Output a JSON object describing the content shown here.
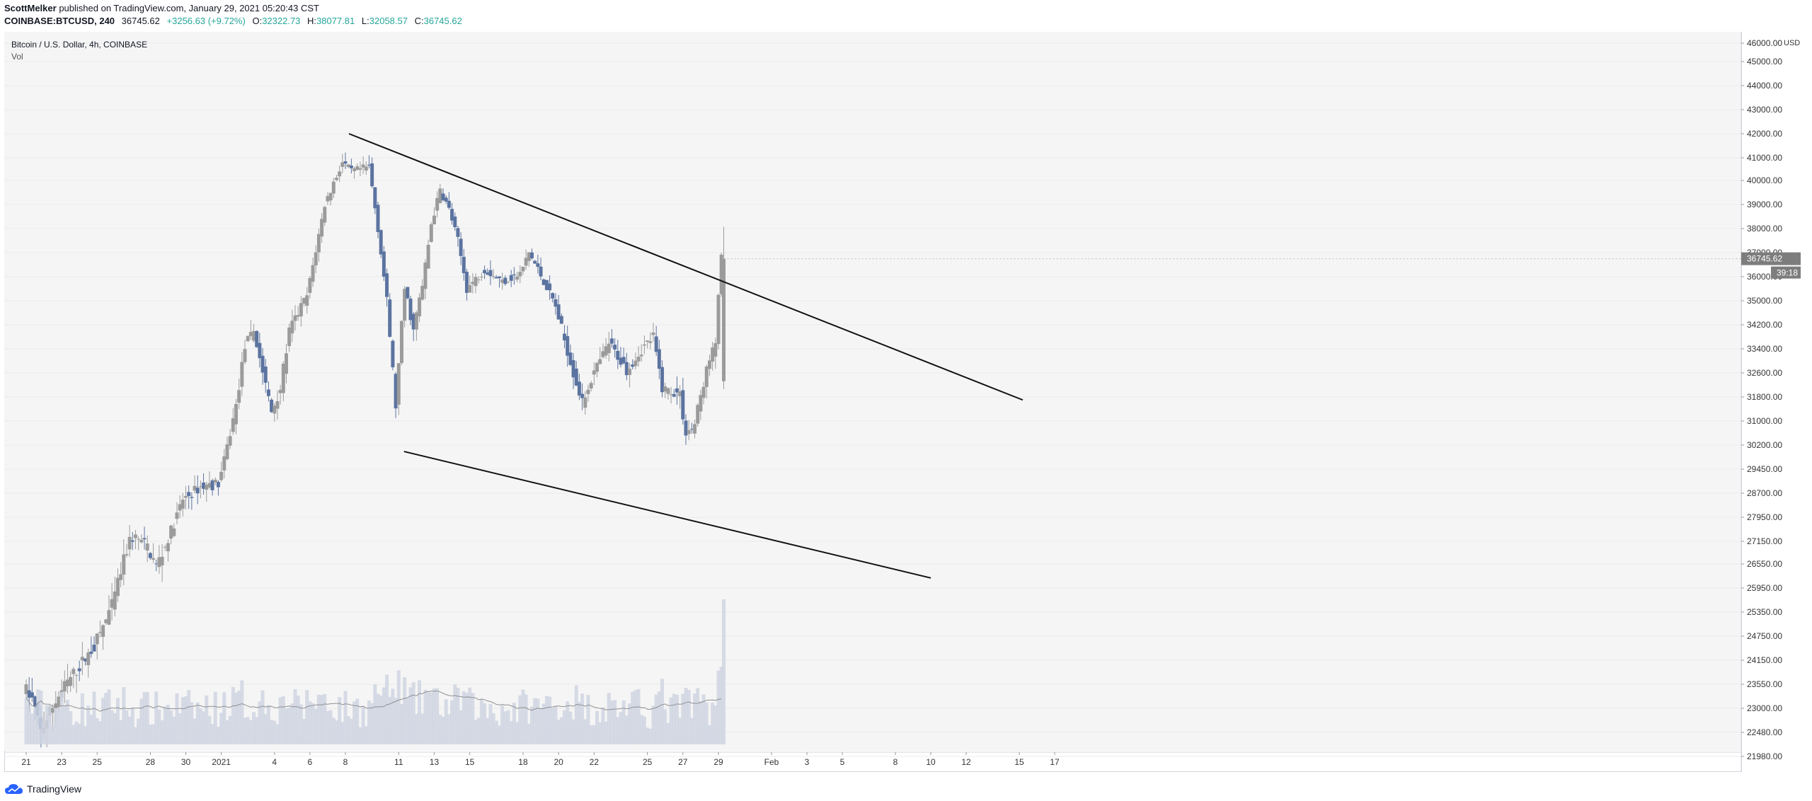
{
  "header": {
    "author": "ScottMelker",
    "published": "published on TradingView.com, January 29, 2021 05:20:43 CST",
    "symbol": "COINBASE:BTCUSD, 240",
    "last": "36745.62",
    "change": "+3256.63 (+9.72%)",
    "open_label": "O:",
    "open": "32322.73",
    "high_label": "H:",
    "high": "38077.81",
    "low_label": "L:",
    "low": "32058.57",
    "close_label": "C:",
    "close": "36745.62"
  },
  "legend": {
    "title": "Bitcoin / U.S. Dollar, 4h, COINBASE",
    "vol": "Vol"
  },
  "footer": {
    "brand": "TradingView"
  },
  "chart_data": {
    "type": "candlestick",
    "title": "Bitcoin / U.S. Dollar, 4h, COINBASE",
    "currency": "USD",
    "y_ticks": [
      46000,
      45000,
      44000,
      43000,
      42000,
      41000,
      40000,
      39000,
      38000,
      37000,
      36000,
      35000,
      34200,
      33400,
      32600,
      31800,
      31000,
      30200,
      29450,
      28700,
      27950,
      27150,
      26550,
      25950,
      25350,
      24750,
      24150,
      23550,
      23000,
      22480,
      21980
    ],
    "x_ticks": [
      {
        "label": "21",
        "t": 0
      },
      {
        "label": "23",
        "t": 2
      },
      {
        "label": "25",
        "t": 4
      },
      {
        "label": "28",
        "t": 7
      },
      {
        "label": "30",
        "t": 9
      },
      {
        "label": "2021",
        "t": 11
      },
      {
        "label": "4",
        "t": 14
      },
      {
        "label": "6",
        "t": 16
      },
      {
        "label": "8",
        "t": 18
      },
      {
        "label": "11",
        "t": 21
      },
      {
        "label": "13",
        "t": 23
      },
      {
        "label": "15",
        "t": 25
      },
      {
        "label": "18",
        "t": 28
      },
      {
        "label": "20",
        "t": 30
      },
      {
        "label": "22",
        "t": 32
      },
      {
        "label": "25",
        "t": 35
      },
      {
        "label": "27",
        "t": 37
      },
      {
        "label": "29",
        "t": 39
      },
      {
        "label": "Feb",
        "t": 42
      },
      {
        "label": "3",
        "t": 44
      },
      {
        "label": "5",
        "t": 46
      },
      {
        "label": "8",
        "t": 49
      },
      {
        "label": "10",
        "t": 51
      },
      {
        "label": "12",
        "t": 53
      },
      {
        "label": "15",
        "t": 56
      },
      {
        "label": "17",
        "t": 58
      }
    ],
    "price_path": [
      [
        0,
        23500
      ],
      [
        0.5,
        23200
      ],
      [
        1,
        22500
      ],
      [
        2,
        23300
      ],
      [
        3,
        23900
      ],
      [
        4,
        24500
      ],
      [
        5,
        25500
      ],
      [
        6,
        27200
      ],
      [
        6.3,
        27300
      ],
      [
        7,
        27000
      ],
      [
        7.5,
        26500
      ],
      [
        8,
        27000
      ],
      [
        9,
        28500
      ],
      [
        10,
        28900
      ],
      [
        11,
        29000
      ],
      [
        11.3,
        29600
      ],
      [
        12,
        31500
      ],
      [
        12.5,
        33500
      ],
      [
        13,
        34000
      ],
      [
        14,
        31300
      ],
      [
        14.5,
        32100
      ],
      [
        15,
        34000
      ],
      [
        16,
        35200
      ],
      [
        17,
        39000
      ],
      [
        18,
        40800
      ],
      [
        18.5,
        40400
      ],
      [
        19.5,
        40600
      ],
      [
        20,
        38000
      ],
      [
        20.5,
        35000
      ],
      [
        21,
        31500
      ],
      [
        21.5,
        35500
      ],
      [
        22,
        34000
      ],
      [
        22.5,
        35600
      ],
      [
        23,
        38200
      ],
      [
        23.5,
        39600
      ],
      [
        24,
        38800
      ],
      [
        24.5,
        37500
      ],
      [
        25,
        35500
      ],
      [
        26,
        36300
      ],
      [
        27,
        35800
      ],
      [
        28,
        36100
      ],
      [
        28.5,
        37000
      ],
      [
        29,
        36300
      ],
      [
        30,
        34800
      ],
      [
        31,
        32600
      ],
      [
        31.5,
        31600
      ],
      [
        32,
        32400
      ],
      [
        33,
        33600
      ],
      [
        34,
        32700
      ],
      [
        35,
        33500
      ],
      [
        35.5,
        33800
      ],
      [
        36,
        32100
      ],
      [
        37,
        31900
      ],
      [
        37.3,
        30600
      ],
      [
        37.8,
        30800
      ],
      [
        38,
        31400
      ],
      [
        38.5,
        32700
      ],
      [
        39,
        33600
      ],
      [
        39.3,
        36745
      ]
    ],
    "last_price": 36745.62,
    "countdown": "39:18",
    "trendlines": [
      {
        "name": "upper-trendline",
        "from": {
          "t": 18.2,
          "price": 42000
        },
        "to": {
          "t": 56.2,
          "price": 31700
        }
      },
      {
        "name": "lower-trendline",
        "from": {
          "t": 21.3,
          "price": 30000
        },
        "to": {
          "t": 51.0,
          "price": 26200
        }
      }
    ],
    "colors": {
      "up": "#9b9b9b",
      "down": "#5b73a0",
      "volume": "#cfd5e2",
      "volume_ma": "#909090",
      "trendline": "#111111",
      "price_tag": "#7d7d7d"
    }
  }
}
